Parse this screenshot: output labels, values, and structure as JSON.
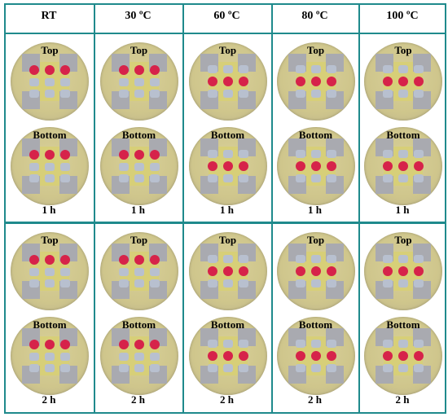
{
  "columns": [
    "RT",
    "30 ºC",
    "60 ºC",
    "80 ºC",
    "100 ºC"
  ],
  "rows": [
    {
      "time_label": "1 h",
      "panels": [
        {
          "top_label": "Top",
          "bottom_label": "Bottom"
        },
        {
          "top_label": "Top",
          "bottom_label": "Bottom"
        },
        {
          "top_label": "Top",
          "bottom_label": "Bottom"
        },
        {
          "top_label": "Top",
          "bottom_label": "Bottom"
        },
        {
          "top_label": "Top",
          "bottom_label": "Bottom"
        }
      ]
    },
    {
      "time_label": "2 h",
      "panels": [
        {
          "top_label": "Top",
          "bottom_label": "Bottom"
        },
        {
          "top_label": "Top",
          "bottom_label": "Bottom"
        },
        {
          "top_label": "Top",
          "bottom_label": "Bottom"
        },
        {
          "top_label": "Top",
          "bottom_label": "Bottom"
        },
        {
          "top_label": "Top",
          "bottom_label": "Bottom"
        }
      ]
    }
  ],
  "colors": {
    "border": "#1f8a8c",
    "spot_red": "#d6234a",
    "spot_grey": "#b8c0cf",
    "pad_yellow": "#d7cf78"
  }
}
